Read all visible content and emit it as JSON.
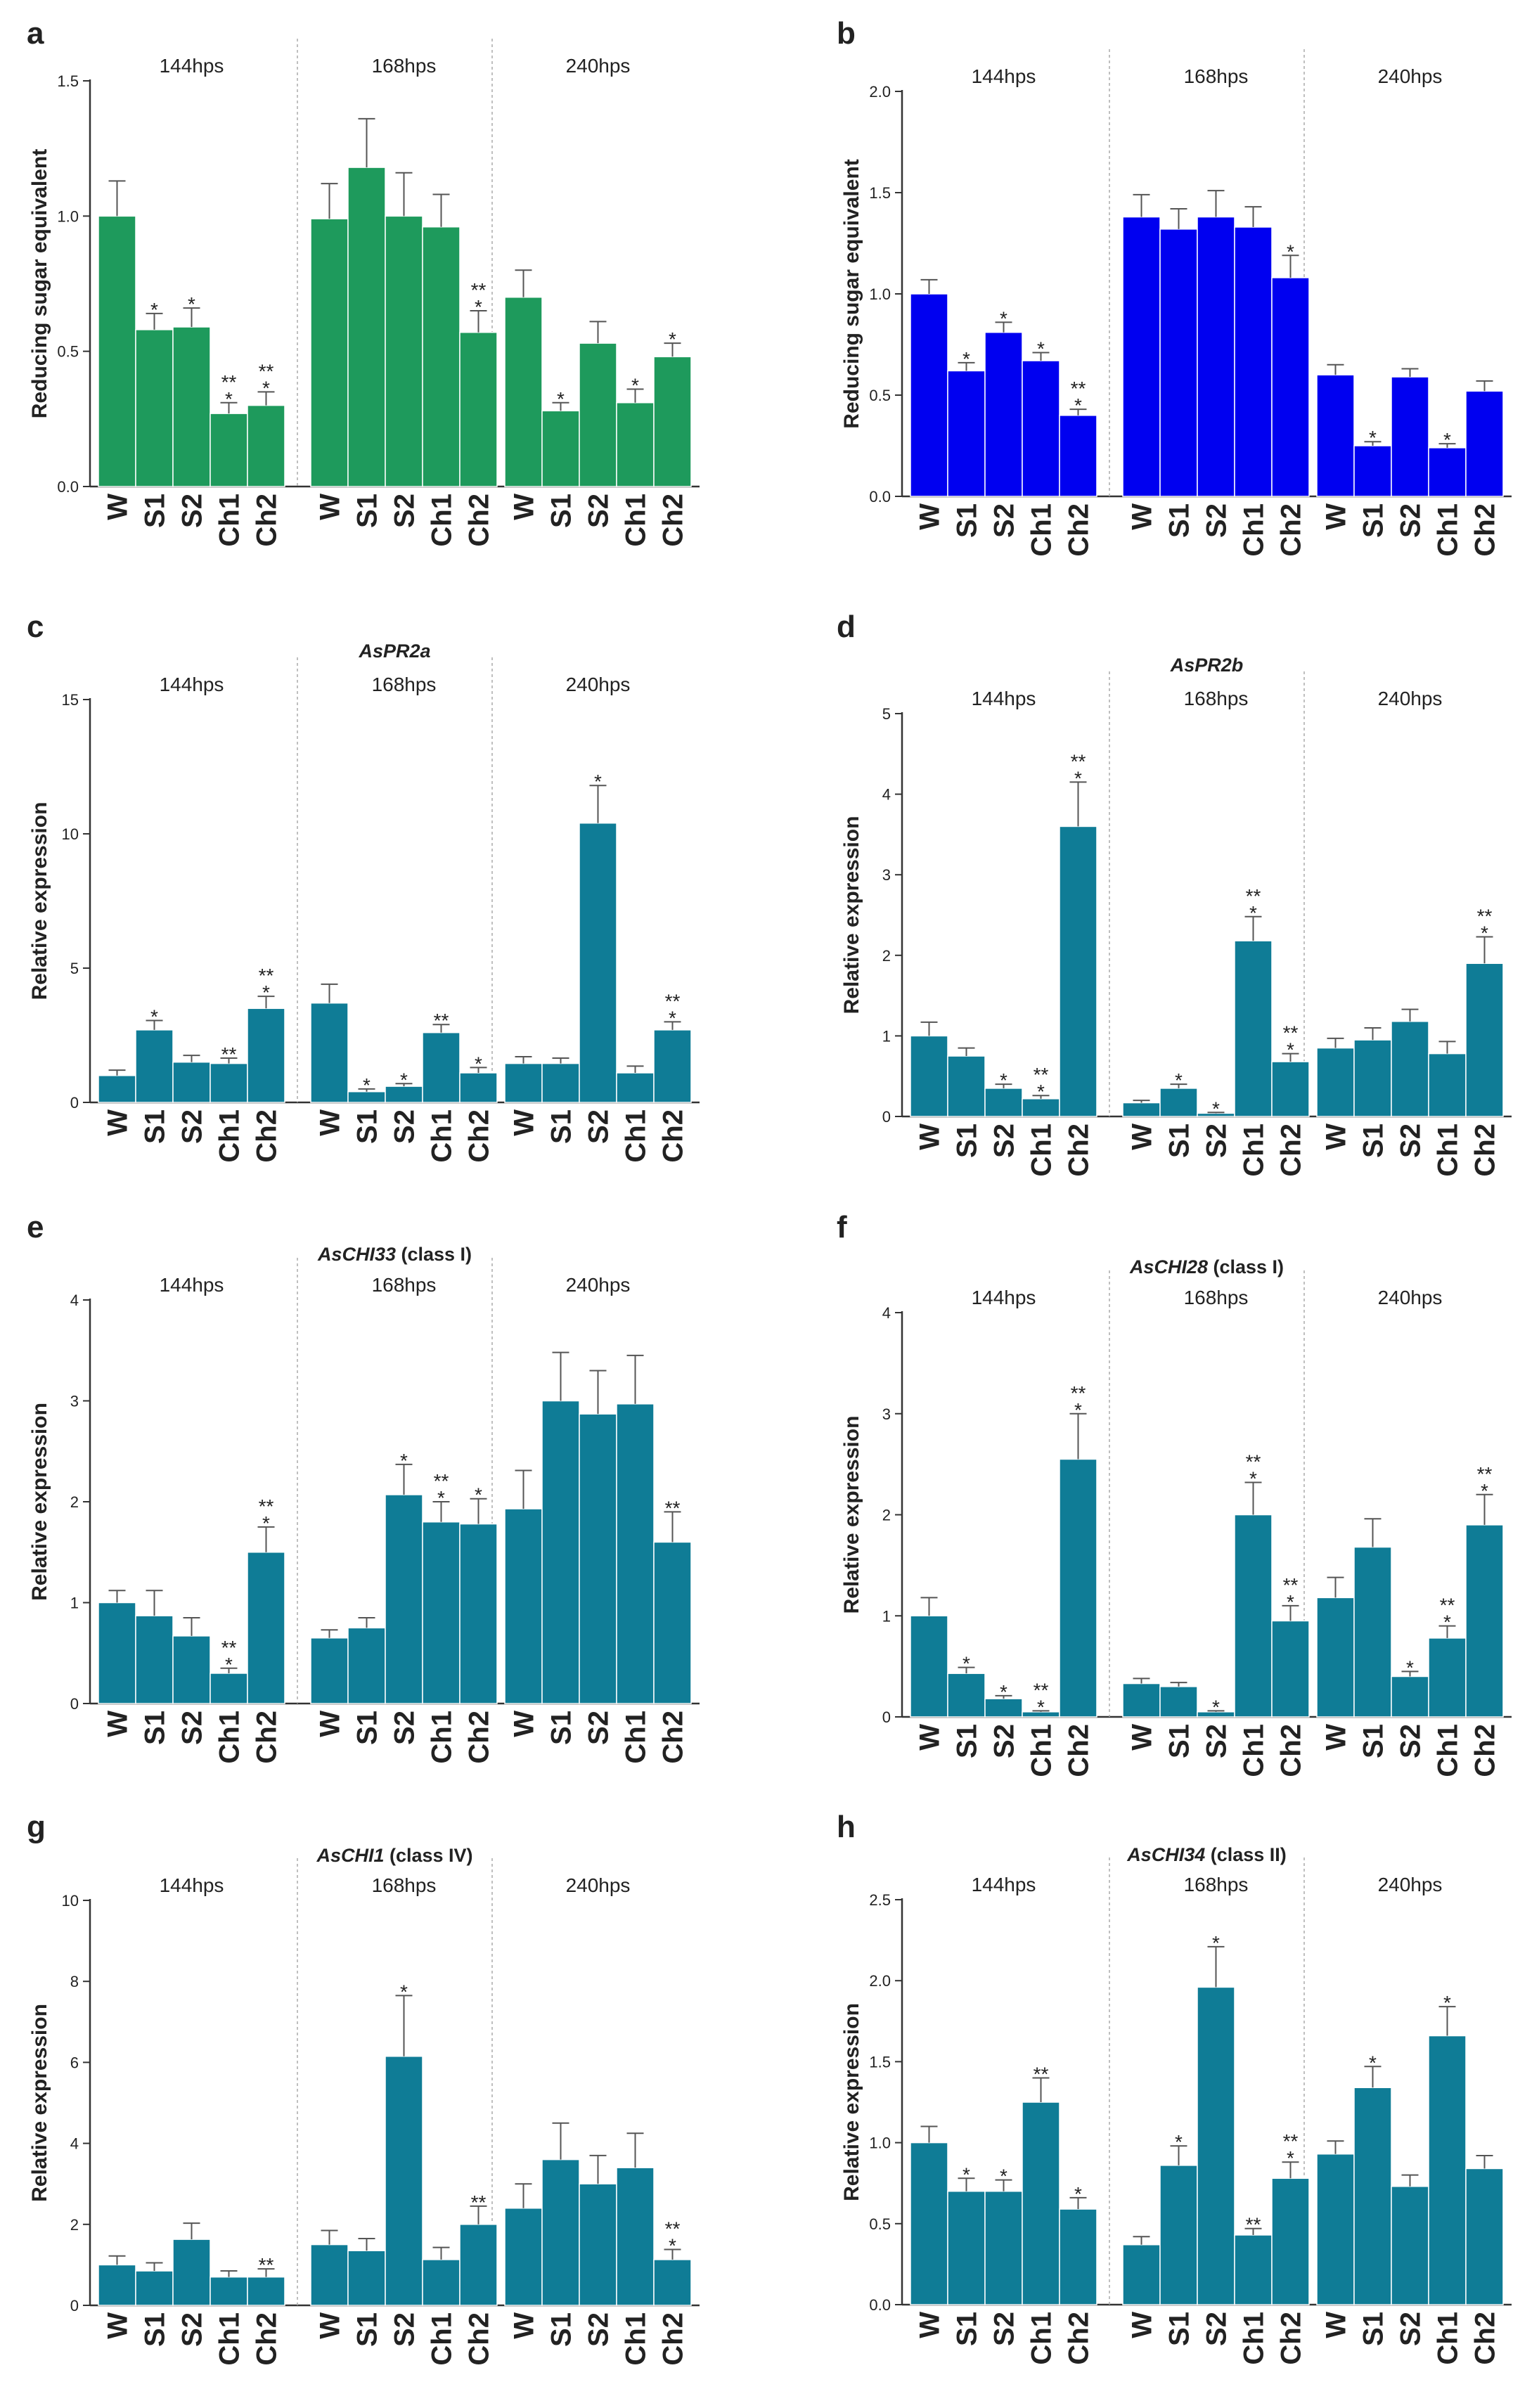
{
  "colors": {
    "green": "#1e9a5c",
    "blue": "#0000f0",
    "teal": "#0f7c96",
    "errorbar": "#555555",
    "axis": "#333333",
    "divider": "#aaaaaa"
  },
  "chart_data": [
    {
      "panel": "a",
      "type": "bar",
      "title": "",
      "title_suffix": "",
      "ylabel": "Reducing sugar equivalent",
      "ylim": [
        0,
        1.5
      ],
      "yticks": [
        "0.0",
        "0.5",
        "1.0",
        "1.5"
      ],
      "color": "green",
      "groups": [
        {
          "label": "144hps",
          "categories": [
            "W",
            "S1",
            "S2",
            "Ch1",
            "Ch2"
          ],
          "values": [
            1.0,
            0.58,
            0.59,
            0.27,
            0.3
          ],
          "errors": [
            0.13,
            0.06,
            0.07,
            0.04,
            0.05
          ],
          "sig": [
            "",
            "*",
            "*",
            "**\n*",
            "**\n*"
          ]
        },
        {
          "label": "168hps",
          "categories": [
            "W",
            "S1",
            "S2",
            "Ch1",
            "Ch2"
          ],
          "values": [
            0.99,
            1.18,
            1.0,
            0.96,
            0.57
          ],
          "errors": [
            0.13,
            0.18,
            0.16,
            0.12,
            0.08
          ],
          "sig": [
            "",
            "",
            "",
            "",
            "**\n*"
          ]
        },
        {
          "label": "240hps",
          "categories": [
            "W",
            "S1",
            "S2",
            "Ch1",
            "Ch2"
          ],
          "values": [
            0.7,
            0.28,
            0.53,
            0.31,
            0.48
          ],
          "errors": [
            0.1,
            0.03,
            0.08,
            0.05,
            0.05
          ],
          "sig": [
            "",
            "*",
            "",
            "*",
            "*"
          ]
        }
      ]
    },
    {
      "panel": "b",
      "type": "bar",
      "title": "",
      "title_suffix": "",
      "ylabel": "Reducing sugar equivalent",
      "ylim": [
        0,
        2.0
      ],
      "yticks": [
        "0.0",
        "0.5",
        "1.0",
        "1.5",
        "2.0"
      ],
      "color": "blue",
      "groups": [
        {
          "label": "144hps",
          "categories": [
            "W",
            "S1",
            "S2",
            "Ch1",
            "Ch2"
          ],
          "values": [
            1.0,
            0.62,
            0.81,
            0.67,
            0.4
          ],
          "errors": [
            0.07,
            0.04,
            0.05,
            0.04,
            0.03
          ],
          "sig": [
            "",
            "*",
            "*",
            "*",
            "**\n*"
          ]
        },
        {
          "label": "168hps",
          "categories": [
            "W",
            "S1",
            "S2",
            "Ch1",
            "Ch2"
          ],
          "values": [
            1.38,
            1.32,
            1.38,
            1.33,
            1.08
          ],
          "errors": [
            0.11,
            0.1,
            0.13,
            0.1,
            0.11
          ],
          "sig": [
            "",
            "",
            "",
            "",
            "*"
          ]
        },
        {
          "label": "240hps",
          "categories": [
            "W",
            "S1",
            "S2",
            "Ch1",
            "Ch2"
          ],
          "values": [
            0.6,
            0.25,
            0.59,
            0.24,
            0.52
          ],
          "errors": [
            0.05,
            0.02,
            0.04,
            0.02,
            0.05
          ],
          "sig": [
            "",
            "*",
            "",
            "*",
            ""
          ]
        }
      ]
    },
    {
      "panel": "c",
      "type": "bar",
      "title": "AsPR2a",
      "title_suffix": "",
      "ylabel": "Relative expression",
      "ylim": [
        0,
        15
      ],
      "yticks": [
        "0",
        "5",
        "10",
        "15"
      ],
      "color": "teal",
      "groups": [
        {
          "label": "144hps",
          "categories": [
            "W",
            "S1",
            "S2",
            "Ch1",
            "Ch2"
          ],
          "values": [
            1.0,
            2.7,
            1.5,
            1.45,
            3.5
          ],
          "errors": [
            0.2,
            0.35,
            0.25,
            0.2,
            0.45
          ],
          "sig": [
            "",
            "*",
            "",
            "**",
            "**\n*"
          ]
        },
        {
          "label": "168hps",
          "categories": [
            "W",
            "S1",
            "S2",
            "Ch1",
            "Ch2"
          ],
          "values": [
            3.7,
            0.4,
            0.6,
            2.6,
            1.1
          ],
          "errors": [
            0.7,
            0.1,
            0.1,
            0.3,
            0.2
          ],
          "sig": [
            "",
            "*",
            "*",
            "**",
            "*"
          ]
        },
        {
          "label": "240hps",
          "categories": [
            "W",
            "S1",
            "S2",
            "Ch1",
            "Ch2"
          ],
          "values": [
            1.45,
            1.45,
            10.4,
            1.1,
            2.7
          ],
          "errors": [
            0.25,
            0.2,
            1.4,
            0.25,
            0.3
          ],
          "sig": [
            "",
            "",
            "*",
            "",
            "**\n*"
          ]
        }
      ]
    },
    {
      "panel": "d",
      "type": "bar",
      "title": "AsPR2b",
      "title_suffix": "",
      "ylabel": "Relative expression",
      "ylim": [
        0,
        5
      ],
      "yticks": [
        "0",
        "1",
        "2",
        "3",
        "4",
        "5"
      ],
      "color": "teal",
      "groups": [
        {
          "label": "144hps",
          "categories": [
            "W",
            "S1",
            "S2",
            "Ch1",
            "Ch2"
          ],
          "values": [
            1.0,
            0.75,
            0.35,
            0.22,
            3.6
          ],
          "errors": [
            0.17,
            0.1,
            0.05,
            0.04,
            0.55
          ],
          "sig": [
            "",
            "",
            "*",
            "**\n*",
            "**\n*"
          ]
        },
        {
          "label": "168hps",
          "categories": [
            "W",
            "S1",
            "S2",
            "Ch1",
            "Ch2"
          ],
          "values": [
            0.17,
            0.35,
            0.04,
            2.18,
            0.68
          ],
          "errors": [
            0.03,
            0.05,
            0.01,
            0.3,
            0.1
          ],
          "sig": [
            "",
            "*",
            "*",
            "**\n*",
            "**\n*"
          ]
        },
        {
          "label": "240hps",
          "categories": [
            "W",
            "S1",
            "S2",
            "Ch1",
            "Ch2"
          ],
          "values": [
            0.85,
            0.95,
            1.18,
            0.78,
            1.9
          ],
          "errors": [
            0.12,
            0.15,
            0.15,
            0.15,
            0.33
          ],
          "sig": [
            "",
            "",
            "",
            "",
            "**\n*"
          ]
        }
      ]
    },
    {
      "panel": "e",
      "type": "bar",
      "title": "AsCHI33",
      "title_suffix": " (class I)",
      "ylabel": "Relative expression",
      "ylim": [
        0,
        4
      ],
      "yticks": [
        "0",
        "1",
        "2",
        "3",
        "4"
      ],
      "color": "teal",
      "groups": [
        {
          "label": "144hps",
          "categories": [
            "W",
            "S1",
            "S2",
            "Ch1",
            "Ch2"
          ],
          "values": [
            1.0,
            0.87,
            0.67,
            0.3,
            1.5
          ],
          "errors": [
            0.12,
            0.25,
            0.18,
            0.05,
            0.25
          ],
          "sig": [
            "",
            "",
            "",
            "**\n*",
            "**\n*"
          ]
        },
        {
          "label": "168hps",
          "categories": [
            "W",
            "S1",
            "S2",
            "Ch1",
            "Ch2"
          ],
          "values": [
            0.65,
            0.75,
            2.07,
            1.8,
            1.78
          ],
          "errors": [
            0.08,
            0.1,
            0.3,
            0.2,
            0.25
          ],
          "sig": [
            "",
            "",
            "*",
            "**\n*",
            "*"
          ]
        },
        {
          "label": "240hps",
          "categories": [
            "W",
            "S1",
            "S2",
            "Ch1",
            "Ch2"
          ],
          "values": [
            1.93,
            3.0,
            2.87,
            2.97,
            1.6
          ],
          "errors": [
            0.38,
            0.48,
            0.43,
            0.48,
            0.3
          ],
          "sig": [
            "",
            "",
            "",
            "",
            "**"
          ]
        }
      ]
    },
    {
      "panel": "f",
      "type": "bar",
      "title": "AsCHI28",
      "title_suffix": " (class I)",
      "ylabel": "Relative expression",
      "ylim": [
        0,
        4
      ],
      "yticks": [
        "0",
        "1",
        "2",
        "3",
        "4"
      ],
      "color": "teal",
      "groups": [
        {
          "label": "144hps",
          "categories": [
            "W",
            "S1",
            "S2",
            "Ch1",
            "Ch2"
          ],
          "values": [
            1.0,
            0.43,
            0.18,
            0.05,
            2.55
          ],
          "errors": [
            0.18,
            0.06,
            0.03,
            0.01,
            0.45
          ],
          "sig": [
            "",
            "*",
            "*",
            "**\n*",
            "**\n*"
          ]
        },
        {
          "label": "168hps",
          "categories": [
            "W",
            "S1",
            "S2",
            "Ch1",
            "Ch2"
          ],
          "values": [
            0.33,
            0.3,
            0.05,
            2.0,
            0.95
          ],
          "errors": [
            0.05,
            0.04,
            0.01,
            0.32,
            0.15
          ],
          "sig": [
            "",
            "",
            "*",
            "**\n*",
            "**\n*"
          ]
        },
        {
          "label": "240hps",
          "categories": [
            "W",
            "S1",
            "S2",
            "Ch1",
            "Ch2"
          ],
          "values": [
            1.18,
            1.68,
            0.4,
            0.78,
            1.9
          ],
          "errors": [
            0.2,
            0.28,
            0.05,
            0.12,
            0.3
          ],
          "sig": [
            "",
            "",
            "*",
            "**\n*",
            "**\n*"
          ]
        }
      ]
    },
    {
      "panel": "g",
      "type": "bar",
      "title": "AsCHI1",
      "title_suffix": " (class IV)",
      "ylabel": "Relative expression",
      "ylim": [
        0,
        10
      ],
      "yticks": [
        "0",
        "2",
        "4",
        "6",
        "8",
        "10"
      ],
      "color": "teal",
      "groups": [
        {
          "label": "144hps",
          "categories": [
            "W",
            "S1",
            "S2",
            "Ch1",
            "Ch2"
          ],
          "values": [
            1.0,
            0.85,
            1.63,
            0.7,
            0.7
          ],
          "errors": [
            0.22,
            0.2,
            0.4,
            0.15,
            0.2
          ],
          "sig": [
            "",
            "",
            "",
            "",
            "**"
          ]
        },
        {
          "label": "168hps",
          "categories": [
            "W",
            "S1",
            "S2",
            "Ch1",
            "Ch2"
          ],
          "values": [
            1.5,
            1.35,
            6.15,
            1.13,
            2.0
          ],
          "errors": [
            0.35,
            0.3,
            1.5,
            0.3,
            0.45
          ],
          "sig": [
            "",
            "",
            "*",
            "",
            "**"
          ]
        },
        {
          "label": "240hps",
          "categories": [
            "W",
            "S1",
            "S2",
            "Ch1",
            "Ch2"
          ],
          "values": [
            2.4,
            3.6,
            3.0,
            3.4,
            1.13
          ],
          "errors": [
            0.6,
            0.9,
            0.7,
            0.85,
            0.25
          ],
          "sig": [
            "",
            "",
            "",
            "",
            "**\n*"
          ]
        }
      ]
    },
    {
      "panel": "h",
      "type": "bar",
      "title": "AsCHI34",
      "title_suffix": " (class II)",
      "ylabel": "Relative expression",
      "ylim": [
        0,
        2.5
      ],
      "yticks": [
        "0.0",
        "0.5",
        "1.0",
        "1.5",
        "2.0",
        "2.5"
      ],
      "color": "teal",
      "groups": [
        {
          "label": "144hps",
          "categories": [
            "W",
            "S1",
            "S2",
            "Ch1",
            "Ch2"
          ],
          "values": [
            1.0,
            0.7,
            0.7,
            1.25,
            0.59
          ],
          "errors": [
            0.1,
            0.08,
            0.07,
            0.15,
            0.07
          ],
          "sig": [
            "",
            "*",
            "*",
            "**",
            "*"
          ]
        },
        {
          "label": "168hps",
          "categories": [
            "W",
            "S1",
            "S2",
            "Ch1",
            "Ch2"
          ],
          "values": [
            0.37,
            0.86,
            1.96,
            0.43,
            0.78
          ],
          "errors": [
            0.05,
            0.12,
            0.25,
            0.04,
            0.1
          ],
          "sig": [
            "",
            "*",
            "*",
            "**",
            "**\n*"
          ]
        },
        {
          "label": "240hps",
          "categories": [
            "W",
            "S1",
            "S2",
            "Ch1",
            "Ch2"
          ],
          "values": [
            0.93,
            1.34,
            0.73,
            1.66,
            0.84
          ],
          "errors": [
            0.08,
            0.13,
            0.07,
            0.18,
            0.08
          ],
          "sig": [
            "",
            "*",
            "",
            "*",
            ""
          ]
        }
      ]
    }
  ]
}
